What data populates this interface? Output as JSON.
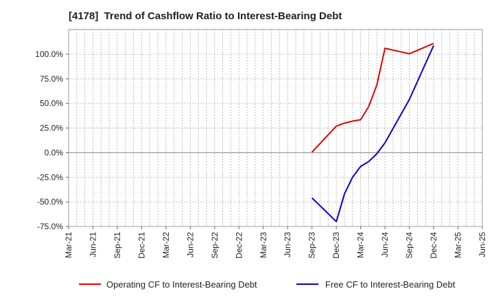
{
  "chart_data": {
    "type": "line",
    "title": "[4178]  Trend of Cashflow Ratio to Interest-Bearing Debt",
    "xlabel": "",
    "ylabel": "",
    "x_ticks": [
      "Mar-21",
      "Jun-21",
      "Sep-21",
      "Dec-21",
      "Mar-22",
      "Jun-22",
      "Sep-22",
      "Dec-22",
      "Mar-23",
      "Jun-23",
      "Sep-23",
      "Dec-23",
      "Mar-24",
      "Jun-24",
      "Sep-24",
      "Dec-24",
      "Mar-25",
      "Jun-25"
    ],
    "y_ticks": [
      "100.0%",
      "75.0%",
      "50.0%",
      "25.0%",
      "0.0%",
      "-25.0%",
      "-50.0%",
      "-75.0%"
    ],
    "ylim": [
      -75,
      110
    ],
    "grid": true,
    "legend": "bottom",
    "series": [
      {
        "name": "Operating CF to Interest-Bearing Debt",
        "color": "#e00000",
        "points": [
          {
            "x": "Sep-23",
            "y": 0.5
          },
          {
            "x": "Dec-23",
            "y": 27
          },
          {
            "x": "Jan-24",
            "y": 30
          },
          {
            "x": "Feb-24",
            "y": 32
          },
          {
            "x": "Mar-24",
            "y": 33.5
          },
          {
            "x": "Apr-24",
            "y": 47
          },
          {
            "x": "May-24",
            "y": 69
          },
          {
            "x": "Jun-24",
            "y": 106
          },
          {
            "x": "Sep-24",
            "y": 100.5
          },
          {
            "x": "Dec-24",
            "y": 111
          }
        ]
      },
      {
        "name": "Free CF to Interest-Bearing Debt",
        "color": "#0000cc",
        "points": [
          {
            "x": "Sep-23",
            "y": -46
          },
          {
            "x": "Dec-23",
            "y": -70
          },
          {
            "x": "Jan-24",
            "y": -42
          },
          {
            "x": "Feb-24",
            "y": -25
          },
          {
            "x": "Mar-24",
            "y": -14
          },
          {
            "x": "Apr-24",
            "y": -9
          },
          {
            "x": "May-24",
            "y": -1
          },
          {
            "x": "Jun-24",
            "y": 10
          },
          {
            "x": "Sep-24",
            "y": 54
          },
          {
            "x": "Dec-24",
            "y": 109
          }
        ]
      }
    ]
  }
}
